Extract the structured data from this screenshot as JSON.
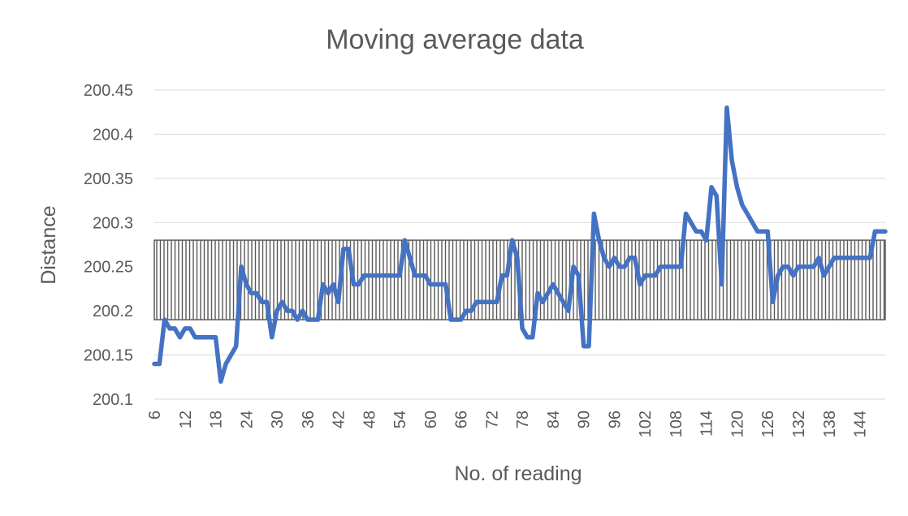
{
  "chart_data": {
    "type": "line",
    "title": "Moving average data",
    "xlabel": "No. of reading",
    "ylabel": "Distance",
    "ylim": [
      200.1,
      200.45
    ],
    "xlim": [
      6,
      149
    ],
    "grid": true,
    "legend": "none",
    "y_ticks": [
      "200.45",
      "200.4",
      "200.35",
      "200.3",
      "200.25",
      "200.2",
      "200.15",
      "200.1"
    ],
    "x_ticks": [
      "6",
      "12",
      "18",
      "24",
      "30",
      "36",
      "42",
      "48",
      "54",
      "60",
      "66",
      "72",
      "78",
      "84",
      "90",
      "96",
      "102",
      "108",
      "114",
      "120",
      "126",
      "132",
      "138",
      "144"
    ],
    "band": {
      "y_low": 200.19,
      "y_high": 200.28,
      "pattern": "vertical-hatch"
    },
    "series": [
      {
        "color": "#4472C4",
        "x": [
          6,
          7,
          8,
          9,
          10,
          11,
          12,
          13,
          14,
          15,
          16,
          17,
          18,
          19,
          20,
          21,
          22,
          23,
          24,
          25,
          26,
          27,
          28,
          29,
          30,
          31,
          32,
          33,
          34,
          35,
          36,
          37,
          38,
          39,
          40,
          41,
          42,
          43,
          44,
          45,
          46,
          47,
          48,
          49,
          50,
          51,
          52,
          53,
          54,
          55,
          56,
          57,
          58,
          59,
          60,
          61,
          62,
          63,
          64,
          65,
          66,
          67,
          68,
          69,
          70,
          71,
          72,
          73,
          74,
          75,
          76,
          77,
          78,
          79,
          80,
          81,
          82,
          83,
          84,
          85,
          86,
          87,
          88,
          89,
          90,
          91,
          92,
          93,
          94,
          95,
          96,
          97,
          98,
          99,
          100,
          101,
          102,
          103,
          104,
          105,
          106,
          107,
          108,
          109,
          110,
          111,
          112,
          113,
          114,
          115,
          116,
          117,
          118,
          119,
          120,
          121,
          122,
          123,
          124,
          125,
          126,
          127,
          128,
          129,
          130,
          131,
          132,
          133,
          134,
          135,
          136,
          137,
          138,
          139,
          140,
          141,
          142,
          143,
          144,
          145,
          146,
          147,
          148,
          149
        ],
        "y": [
          200.14,
          200.14,
          200.19,
          200.18,
          200.18,
          200.17,
          200.18,
          200.18,
          200.17,
          200.17,
          200.17,
          200.17,
          200.17,
          200.12,
          200.14,
          200.15,
          200.16,
          200.25,
          200.23,
          200.22,
          200.22,
          200.21,
          200.21,
          200.17,
          200.2,
          200.21,
          200.2,
          200.2,
          200.19,
          200.2,
          200.19,
          200.19,
          200.19,
          200.23,
          200.22,
          200.23,
          200.21,
          200.27,
          200.27,
          200.23,
          200.23,
          200.24,
          200.24,
          200.24,
          200.24,
          200.24,
          200.24,
          200.24,
          200.24,
          200.28,
          200.26,
          200.24,
          200.24,
          200.24,
          200.23,
          200.23,
          200.23,
          200.23,
          200.19,
          200.19,
          200.19,
          200.2,
          200.2,
          200.21,
          200.21,
          200.21,
          200.21,
          200.21,
          200.24,
          200.24,
          200.28,
          200.26,
          200.18,
          200.17,
          200.17,
          200.22,
          200.21,
          200.22,
          200.23,
          200.22,
          200.21,
          200.2,
          200.25,
          200.24,
          200.16,
          200.16,
          200.31,
          200.28,
          200.26,
          200.25,
          200.26,
          200.25,
          200.25,
          200.26,
          200.26,
          200.23,
          200.24,
          200.24,
          200.24,
          200.25,
          200.25,
          200.25,
          200.25,
          200.25,
          200.31,
          200.3,
          200.29,
          200.29,
          200.28,
          200.34,
          200.33,
          200.23,
          200.43,
          200.37,
          200.34,
          200.32,
          200.31,
          200.3,
          200.29,
          200.29,
          200.29,
          200.21,
          200.24,
          200.25,
          200.25,
          200.24,
          200.25,
          200.25,
          200.25,
          200.25,
          200.26,
          200.24,
          200.25,
          200.26,
          200.26,
          200.26,
          200.26,
          200.26,
          200.26,
          200.26,
          200.26,
          200.29,
          200.29,
          200.29
        ]
      }
    ]
  }
}
